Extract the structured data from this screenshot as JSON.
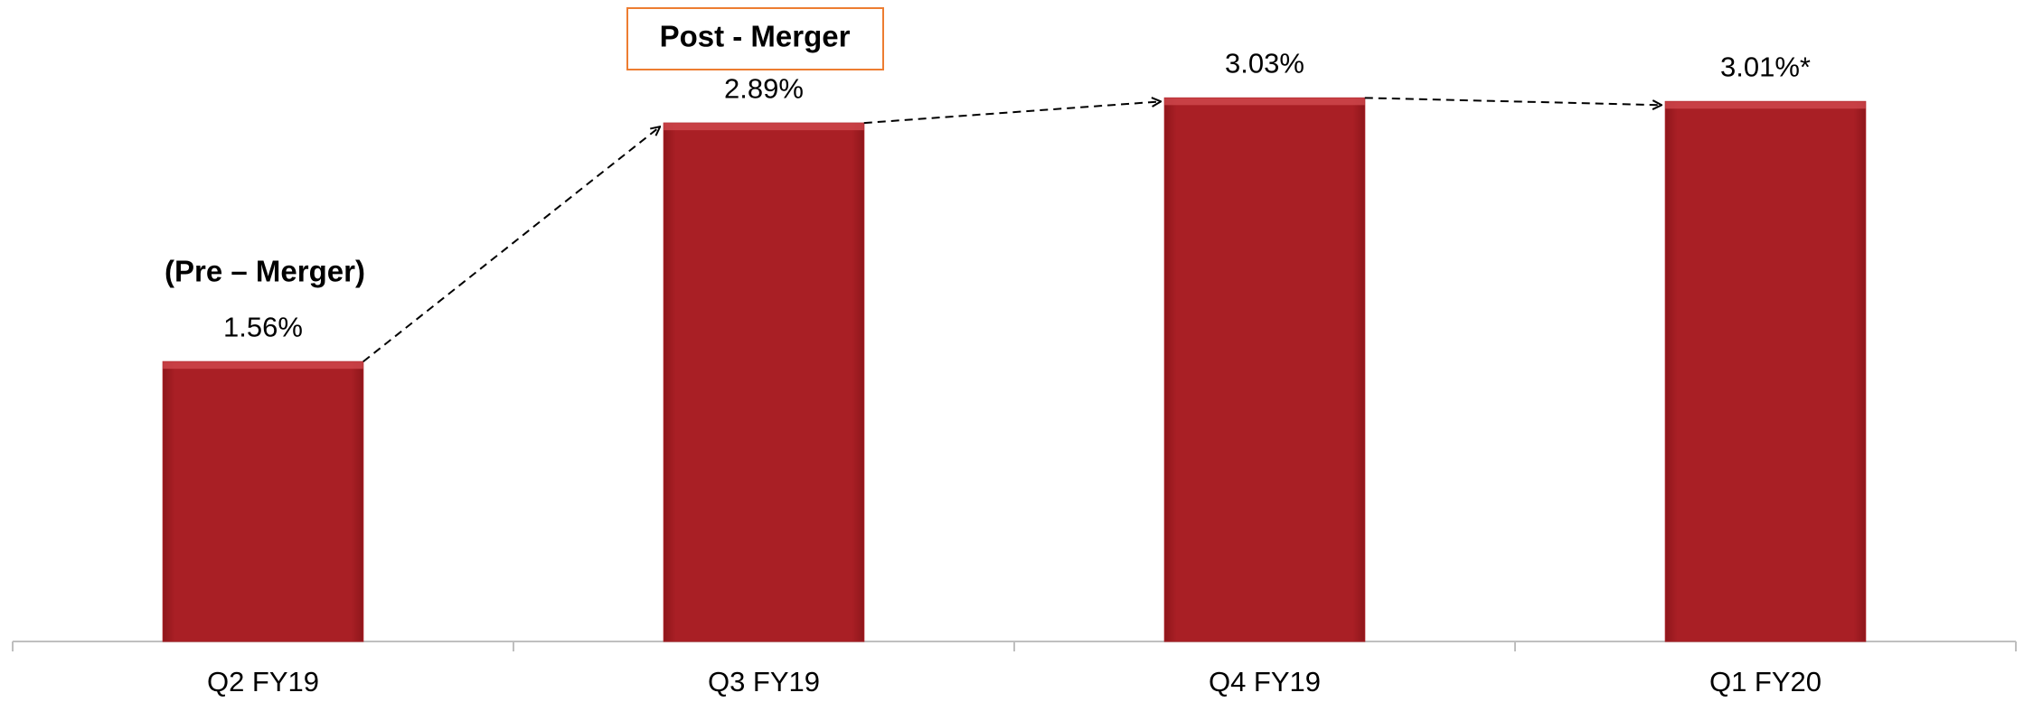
{
  "chart_data": {
    "type": "bar",
    "categories": [
      "Q2 FY19",
      "Q3 FY19",
      "Q4 FY19",
      "Q1 FY20"
    ],
    "values": [
      1.56,
      2.89,
      3.03,
      3.01
    ],
    "value_labels": [
      "1.56%",
      "2.89%",
      "3.03%",
      "3.01%*"
    ],
    "color": "#a91f25",
    "ylim": [
      0,
      3.5
    ],
    "annotations": [
      "(Pre – Merger)",
      "Post - Merger"
    ]
  }
}
